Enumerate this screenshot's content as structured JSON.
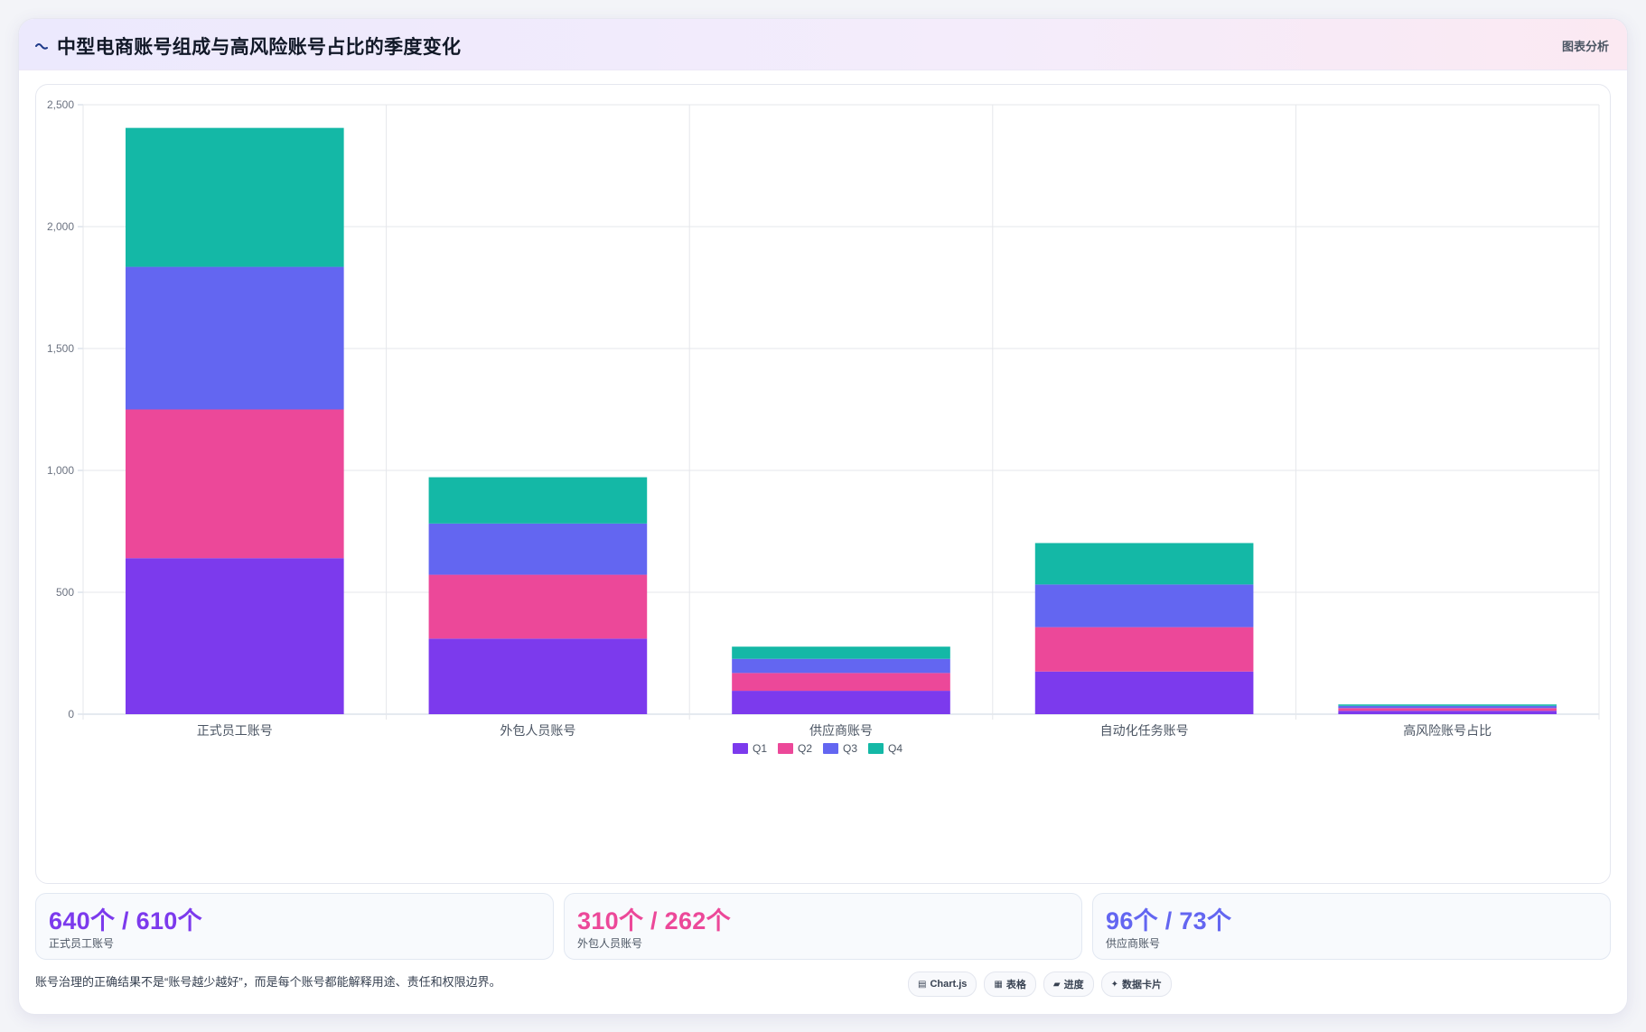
{
  "header": {
    "title": "中型电商账号组成与高风险账号占比的季度变化",
    "title_icon": "wave-icon",
    "right_label": "图表分析"
  },
  "chart_data": {
    "type": "bar",
    "stacked": true,
    "categories": [
      "正式员工账号",
      "外包人员账号",
      "供应商账号",
      "自动化任务账号",
      "高风险账号占比"
    ],
    "series": [
      {
        "name": "Q1",
        "color": "#7c3aed",
        "values": [
          640,
          310,
          96,
          175,
          14
        ]
      },
      {
        "name": "Q2",
        "color": "#ec4899",
        "values": [
          610,
          262,
          73,
          182,
          11
        ]
      },
      {
        "name": "Q3",
        "color": "#6366f1",
        "values": [
          585,
          210,
          58,
          175,
          9
        ]
      },
      {
        "name": "Q4",
        "color": "#14b8a6",
        "values": [
          570,
          190,
          50,
          170,
          6
        ]
      }
    ],
    "ylim": [
      0,
      2500
    ],
    "yticks": [
      "0",
      "500",
      "1,000",
      "1,500",
      "2,000",
      "2,500"
    ],
    "ytick_values": [
      0,
      500,
      1000,
      1500,
      2000,
      2500
    ],
    "grid": true,
    "legend_position": "bottom-center"
  },
  "stats": [
    {
      "value": "640个 / 610个",
      "label": "正式员工账号",
      "color": "#7c3aed"
    },
    {
      "value": "310个 / 262个",
      "label": "外包人员账号",
      "color": "#ec4899"
    },
    {
      "value": "96个 / 73个",
      "label": "供应商账号",
      "color": "#6366f1"
    }
  ],
  "footer": {
    "note": "账号治理的正确结果不是“账号越少越好”，而是每个账号都能解释用途、责任和权限边界。",
    "tags": [
      {
        "icon": "chart-icon",
        "glyph": "▤",
        "label": "Chart.js"
      },
      {
        "icon": "table-icon",
        "glyph": "▦",
        "label": "表格"
      },
      {
        "icon": "progress-icon",
        "glyph": "▰",
        "label": "进度"
      },
      {
        "icon": "sparkle-icon",
        "glyph": "✦",
        "label": "数据卡片"
      }
    ]
  }
}
